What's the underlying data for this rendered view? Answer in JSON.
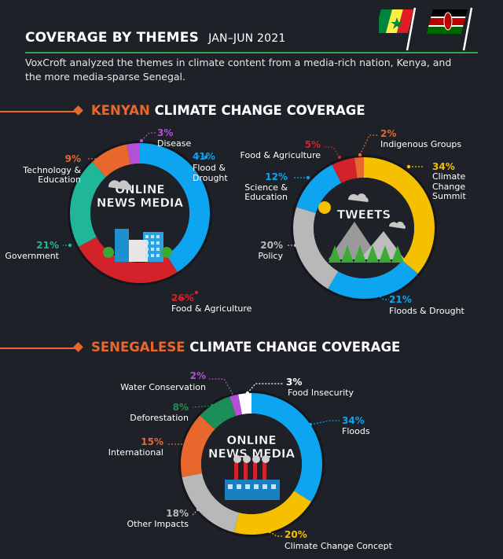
{
  "header": {
    "title": "COVERAGE BY THEMES",
    "period": "JAN–JUN 2021",
    "intro": "VoxCroft analyzed the themes in climate content from a media-rich nation, Kenya, and the more media-sparse Senegal."
  },
  "sections": [
    {
      "highlight": "KENYAN",
      "rest": " CLIMATE CHANGE COVERAGE"
    },
    {
      "highlight": "SENEGALESE",
      "rest": " CLIMATE CHANGE COVERAGE"
    }
  ],
  "colors": {
    "background": "#1e2128",
    "accent": "#e8672c",
    "rule": "#2fa84f",
    "blue": "#0ea5f0",
    "red": "#d3222a",
    "teal": "#1fb69a",
    "orange": "#e8672c",
    "purple": "#b44fd6",
    "yellow": "#f5c000",
    "gray": "#b8b8b8",
    "green": "#1b8f57",
    "white": "#ffffff"
  },
  "chart_data": [
    {
      "type": "pie",
      "title": "ONLINE NEWS MEDIA",
      "icon": "city-buildings-icon",
      "slices": [
        {
          "label": "Flood & Drought",
          "value": 41,
          "color": "#0ea5f0"
        },
        {
          "label": "Food & Agriculture",
          "value": 26,
          "color": "#d3222a"
        },
        {
          "label": "Government",
          "value": 21,
          "color": "#1fb69a"
        },
        {
          "label": "Technology & Education",
          "value": 9,
          "color": "#e8672c"
        },
        {
          "label": "Disease",
          "value": 3,
          "color": "#b44fd6"
        }
      ]
    },
    {
      "type": "pie",
      "title": "TWEETS",
      "icon": "mountain-forest-icon",
      "slices": [
        {
          "label": "Climate Change Summit",
          "value": 34,
          "color": "#f5c000"
        },
        {
          "label": "Floods & Drought",
          "value": 21,
          "color": "#0ea5f0"
        },
        {
          "label": "Policy",
          "value": 20,
          "color": "#b8b8b8"
        },
        {
          "label": "Science & Education",
          "value": 12,
          "color": "#0ea5f0"
        },
        {
          "label": "Food & Agriculture",
          "value": 5,
          "color": "#d3222a"
        },
        {
          "label": "Indigenous Groups",
          "value": 2,
          "color": "#e8672c"
        }
      ]
    },
    {
      "type": "pie",
      "title": "ONLINE NEWS MEDIA",
      "icon": "factory-icon",
      "slices": [
        {
          "label": "Floods",
          "value": 34,
          "color": "#0ea5f0"
        },
        {
          "label": "Climate Change Concept",
          "value": 20,
          "color": "#f5c000"
        },
        {
          "label": "Other Impacts",
          "value": 18,
          "color": "#b8b8b8"
        },
        {
          "label": "International",
          "value": 15,
          "color": "#e8672c"
        },
        {
          "label": "Deforestation",
          "value": 8,
          "color": "#1b8f57"
        },
        {
          "label": "Water Conservation",
          "value": 2,
          "color": "#b44fd6"
        },
        {
          "label": "Food Insecurity",
          "value": 3,
          "color": "#ffffff"
        }
      ]
    }
  ]
}
